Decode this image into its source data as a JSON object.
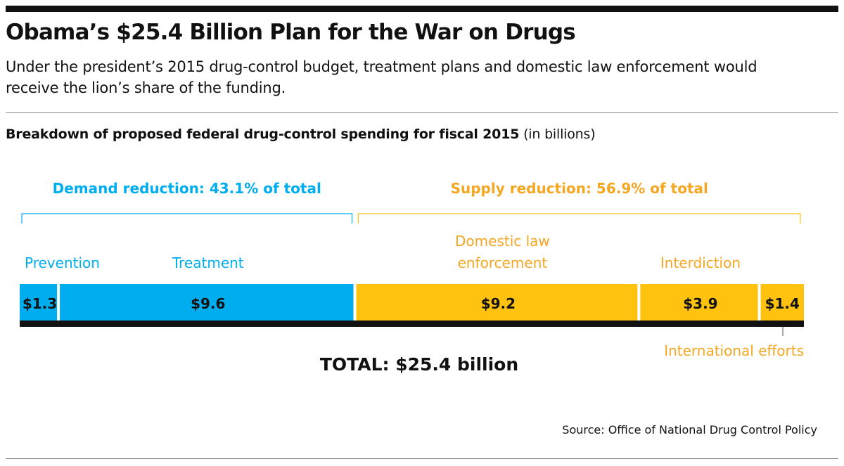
{
  "title": "Obama’s $25.4 Billion Plan for the War on Drugs",
  "subtitle": "Under the president’s 2015 drug-control budget, treatment plans and domestic law enforcement would receive the lion’s share of the funding.",
  "chart_heading": {
    "bold": "Breakdown of proposed federal drug-control spending for fiscal 2015",
    "unit": "(in billions)"
  },
  "source": "Source: Office of National Drug Control Policy",
  "colors": {
    "demand": "#00aeef",
    "supply": "#ffc20e",
    "supply_text": "#f5a623",
    "baseline": "#111111"
  },
  "chart_data": {
    "type": "bar",
    "orientation": "horizontal-stacked",
    "unit": "billions of dollars",
    "total": 25.4,
    "total_label": "TOTAL: $25.4 billion",
    "groups": [
      {
        "key": "demand",
        "label": "Demand reduction: 43.1% of total",
        "share": 43.1
      },
      {
        "key": "supply",
        "label": "Supply reduction: 56.9% of total",
        "share": 56.9
      }
    ],
    "segments": [
      {
        "name": "Prevention",
        "group": "demand",
        "value": 1.3,
        "value_label": "$1.3"
      },
      {
        "name": "Treatment",
        "group": "demand",
        "value": 9.6,
        "value_label": "$9.6"
      },
      {
        "name": "Domestic law enforcement",
        "group": "supply",
        "value": 9.2,
        "value_label": "$9.2"
      },
      {
        "name": "Interdiction",
        "group": "supply",
        "value": 3.9,
        "value_label": "$3.9"
      },
      {
        "name": "International efforts",
        "group": "supply",
        "value": 1.4,
        "value_label": "$1.4"
      }
    ]
  }
}
